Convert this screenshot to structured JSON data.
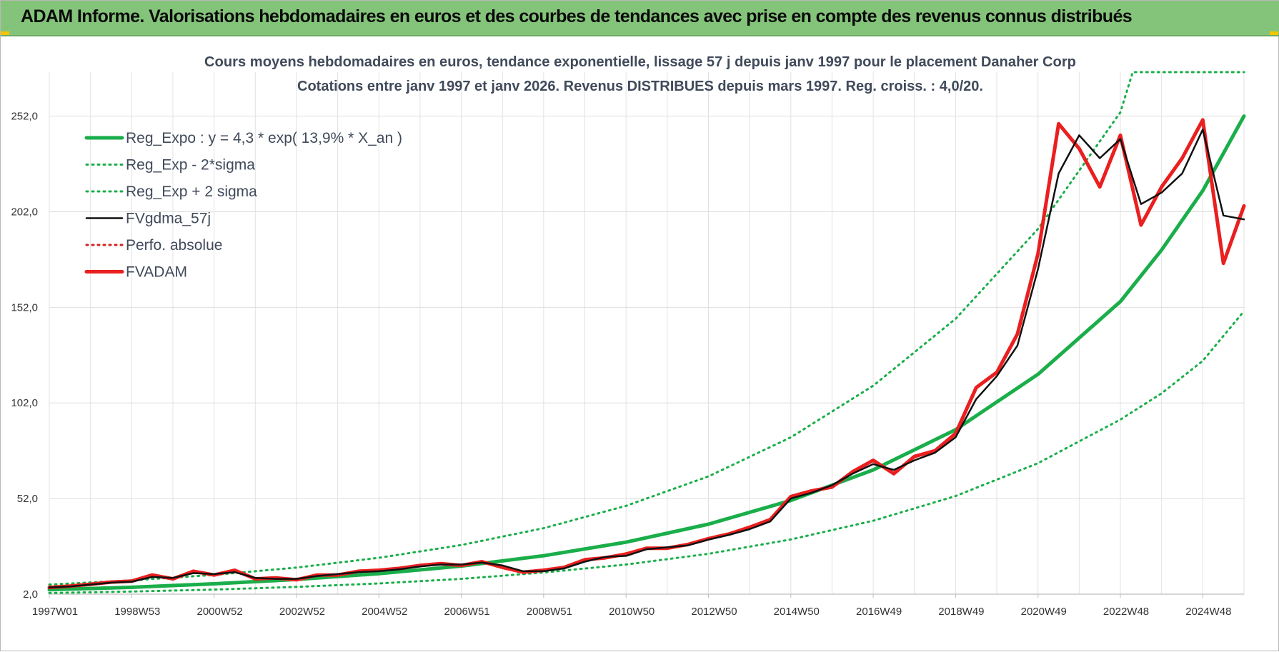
{
  "banner": {
    "title": "ADAM Informe. Valorisations hebdomadaires en euros et des courbes de tendances avec prise en compte des revenus connus distribués"
  },
  "colors": {
    "banner_bg": "#84c47a",
    "reg_expo": "#1aae4a",
    "fvadam": "#ea1f1f",
    "fvgdma": "#111111",
    "perfo": "#d62020"
  },
  "chart_data": {
    "type": "line",
    "title": [
      "Cours moyens hebdomadaires en euros, tendance exponentielle, lissage 57 j depuis janv 1997  pour le placement Danaher Corp",
      "Cotations entre janv 1997 et janv 2026. Revenus DISTRIBUES depuis mars 1997.  Reg. croiss. : 4,0/20."
    ],
    "xlabel": "",
    "ylabel": "",
    "x_range": [
      1997.0,
      2026.0
    ],
    "ylim": [
      2.0,
      275.0
    ],
    "y_ticks": [
      "2,0",
      "52,0",
      "102,0",
      "152,0",
      "202,0",
      "252,0"
    ],
    "y_tick_values": [
      2,
      52,
      102,
      152,
      202,
      252
    ],
    "x_ticks": [
      {
        "label": "1997W01",
        "x": 1997.0
      },
      {
        "label": "1998W53",
        "x": 1999.0
      },
      {
        "label": "2000W52",
        "x": 2001.0
      },
      {
        "label": "2002W52",
        "x": 2003.0
      },
      {
        "label": "2004W52",
        "x": 2005.0
      },
      {
        "label": "2006W51",
        "x": 2007.0
      },
      {
        "label": "2008W51",
        "x": 2009.0
      },
      {
        "label": "2010W50",
        "x": 2011.0
      },
      {
        "label": "2012W50",
        "x": 2013.0
      },
      {
        "label": "2014W50",
        "x": 2015.0
      },
      {
        "label": "2016W49",
        "x": 2017.0
      },
      {
        "label": "2018W49",
        "x": 2019.0
      },
      {
        "label": "2020W49",
        "x": 2021.0
      },
      {
        "label": "2022W48",
        "x": 2023.0
      },
      {
        "label": "2024W48",
        "x": 2025.0
      }
    ],
    "grid": true,
    "legend_position": "top-left",
    "legend": [
      {
        "name": "Reg_Expo : y = 4,3 * exp( 13,9% *  X_an )",
        "style": "solid-thick",
        "color": "#1aae4a"
      },
      {
        "name": "Reg_Exp - 2*sigma",
        "style": "dotted",
        "color": "#1aae4a"
      },
      {
        "name": "Reg_Exp + 2 sigma",
        "style": "dotted",
        "color": "#1aae4a"
      },
      {
        "name": "FVgdma_57j",
        "style": "solid",
        "color": "#111111"
      },
      {
        "name": "Perfo. absolue",
        "style": "dotted",
        "color": "#d62020"
      },
      {
        "name": "FVADAM",
        "style": "solid-thick",
        "color": "#ea1f1f"
      }
    ],
    "series": [
      {
        "name": "Reg_Expo : y = 4,3 * exp( 13,9% *  X_an )",
        "x": [
          1997.0,
          1999.0,
          2001.0,
          2003.0,
          2005.0,
          2007.0,
          2009.0,
          2011.0,
          2013.0,
          2015.0,
          2017.0,
          2019.0,
          2021.0,
          2023.0,
          2024.0,
          2025.0,
          2026.0
        ],
        "y": [
          4.3,
          5.6,
          7.4,
          9.7,
          12.7,
          16.7,
          22.1,
          29.2,
          38.6,
          51.0,
          67.0,
          88.0,
          117.0,
          155.0,
          182.0,
          213.0,
          252.0
        ]
      },
      {
        "name": "Reg_Exp - 2*sigma",
        "x": [
          1997.0,
          1999.0,
          2001.0,
          2003.0,
          2005.0,
          2007.0,
          2009.0,
          2011.0,
          2013.0,
          2015.0,
          2017.0,
          2019.0,
          2021.0,
          2023.0,
          2024.0,
          2025.0,
          2026.0
        ],
        "y": [
          2.6,
          3.4,
          4.4,
          5.8,
          7.6,
          10.0,
          13.3,
          17.5,
          23.1,
          30.6,
          40.4,
          53.3,
          70.5,
          93.3,
          107.0,
          124.0,
          150.0
        ]
      },
      {
        "name": "Reg_Exp + 2 sigma",
        "x": [
          1997.0,
          1999.0,
          2001.0,
          2003.0,
          2005.0,
          2007.0,
          2009.0,
          2011.0,
          2013.0,
          2015.0,
          2017.0,
          2019.0,
          2021.0,
          2023.0,
          2023.3,
          2026.0
        ],
        "y": [
          7.0,
          9.2,
          12.1,
          15.9,
          21.0,
          27.7,
          36.5,
          48.2,
          63.6,
          84.0,
          111.0,
          146.0,
          193.0,
          254.0,
          275.0,
          275.0
        ]
      },
      {
        "name": "FVgdma_57j",
        "x": [
          1997.0,
          1997.5,
          1998.0,
          1998.5,
          1999.0,
          1999.5,
          2000.0,
          2000.5,
          2001.0,
          2001.5,
          2002.0,
          2002.5,
          2003.0,
          2003.5,
          2004.0,
          2004.5,
          2005.0,
          2005.5,
          2006.0,
          2006.5,
          2007.0,
          2007.5,
          2008.0,
          2008.5,
          2009.0,
          2009.5,
          2010.0,
          2010.5,
          2011.0,
          2011.5,
          2012.0,
          2012.5,
          2013.0,
          2013.5,
          2014.0,
          2014.5,
          2015.0,
          2015.5,
          2016.0,
          2016.5,
          2017.0,
          2017.5,
          2018.0,
          2018.5,
          2019.0,
          2019.5,
          2020.0,
          2020.5,
          2021.0,
          2021.5,
          2022.0,
          2022.5,
          2023.0,
          2023.5,
          2024.0,
          2024.5,
          2025.0,
          2025.5,
          2026.0
        ],
        "y": [
          5.5,
          6.0,
          7.0,
          8.0,
          8.5,
          11.0,
          10.5,
          13.0,
          12.5,
          13.5,
          10.5,
          10.0,
          10.0,
          11.5,
          12.5,
          13.5,
          14.0,
          15.0,
          16.5,
          17.5,
          17.5,
          18.5,
          17.0,
          14.0,
          14.0,
          15.5,
          19.0,
          21.5,
          22.0,
          25.5,
          26.5,
          27.5,
          30.5,
          33.0,
          36.0,
          40.0,
          52.0,
          55.0,
          59.0,
          65.0,
          70.0,
          67.0,
          72.0,
          76.0,
          84.0,
          104.0,
          116.0,
          132.0,
          172.0,
          222.0,
          242.0,
          230.0,
          240.0,
          206.0,
          212.0,
          222.0,
          245.0,
          200.0,
          198.0
        ]
      },
      {
        "name": "FVADAM",
        "x": [
          1997.0,
          1997.5,
          1998.0,
          1998.5,
          1999.0,
          1999.5,
          2000.0,
          2000.5,
          2001.0,
          2001.5,
          2002.0,
          2002.5,
          2003.0,
          2003.5,
          2004.0,
          2004.5,
          2005.0,
          2005.5,
          2006.0,
          2006.5,
          2007.0,
          2007.5,
          2008.0,
          2008.5,
          2009.0,
          2009.5,
          2010.0,
          2010.5,
          2011.0,
          2011.5,
          2012.0,
          2012.5,
          2013.0,
          2013.5,
          2014.0,
          2014.5,
          2015.0,
          2015.5,
          2016.0,
          2016.5,
          2017.0,
          2017.5,
          2018.0,
          2018.5,
          2019.0,
          2019.5,
          2020.0,
          2020.5,
          2021.0,
          2021.5,
          2022.0,
          2022.5,
          2023.0,
          2023.5,
          2024.0,
          2024.5,
          2025.0,
          2025.5,
          2026.0
        ],
        "y": [
          5.5,
          6.2,
          7.2,
          8.3,
          8.8,
          12.0,
          10.0,
          14.0,
          12.0,
          14.5,
          10.0,
          10.5,
          9.5,
          12.0,
          12.0,
          14.0,
          14.5,
          15.5,
          17.0,
          18.0,
          17.0,
          19.0,
          16.0,
          13.5,
          14.5,
          16.0,
          20.0,
          21.0,
          23.0,
          26.0,
          26.0,
          28.0,
          31.0,
          33.5,
          37.0,
          41.0,
          53.0,
          56.0,
          58.0,
          66.0,
          72.0,
          65.0,
          74.0,
          77.0,
          86.0,
          110.0,
          118.0,
          138.0,
          180.0,
          248.0,
          235.0,
          215.0,
          242.0,
          195.0,
          215.0,
          230.0,
          250.0,
          175.0,
          205.0
        ]
      }
    ]
  }
}
